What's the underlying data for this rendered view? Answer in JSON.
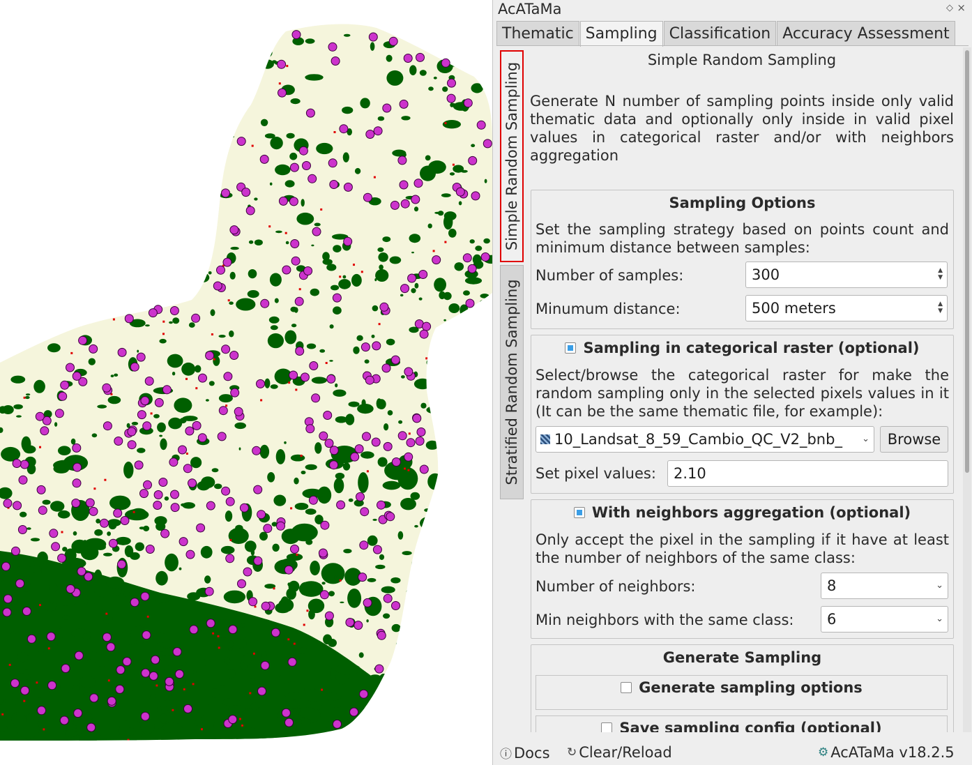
{
  "app": {
    "title": "AcATaMa",
    "tabs": [
      {
        "label": "Thematic",
        "active": false
      },
      {
        "label": "Sampling",
        "active": true
      },
      {
        "label": "Classification",
        "active": false
      },
      {
        "label": "Accuracy Assessment",
        "active": false
      }
    ]
  },
  "side_tabs": [
    {
      "label": "Simple Random Sampling",
      "active": true
    },
    {
      "label": "Stratified Random Sampling",
      "active": false
    }
  ],
  "content": {
    "heading": "Simple Random Sampling",
    "description": "Generate N number of sampling points inside only valid thematic data and optionally only inside in valid pixel values in categorical raster and/or with neighbors aggregation"
  },
  "sampling_options": {
    "title": "Sampling Options",
    "description": "Set the sampling strategy based on points count and minimum distance between samples:",
    "num_samples_label": "Number of samples:",
    "num_samples_value": "300",
    "min_distance_label": "Minumum distance:",
    "min_distance_value": "500 meters"
  },
  "categorical_raster": {
    "title": "Sampling in categorical raster (optional)",
    "checked": true,
    "description": "Select/browse the categorical raster for make the random sampling only in the selected pixels values in it (It can be the same thematic file, for example):",
    "layer_value": "10_Landsat_8_59_Cambio_QC_V2_bnb_",
    "browse_label": "Browse",
    "pixel_values_label": "Set pixel values:",
    "pixel_values_value": "2.10"
  },
  "neighbors": {
    "title": "With neighbors aggregation (optional)",
    "checked": true,
    "description": "Only accept the pixel in the sampling if it have at least the number of neighbors of the same class:",
    "num_neighbors_label": "Number of neighbors:",
    "num_neighbors_value": "8",
    "min_same_label": "Min neighbors with the same class:",
    "min_same_value": "6"
  },
  "generate": {
    "title": "Generate Sampling",
    "options_label": "Generate sampling options",
    "save_label": "Save sampling config (optional)"
  },
  "footer": {
    "docs_label": "Docs",
    "reload_label": "Clear/Reload",
    "version_label": "AcATaMa v18.2.5"
  },
  "colors": {
    "forest": "#005f00",
    "non_forest": "#f5f5dc",
    "change": "#e00000",
    "sample_point": "#cc33cc"
  }
}
